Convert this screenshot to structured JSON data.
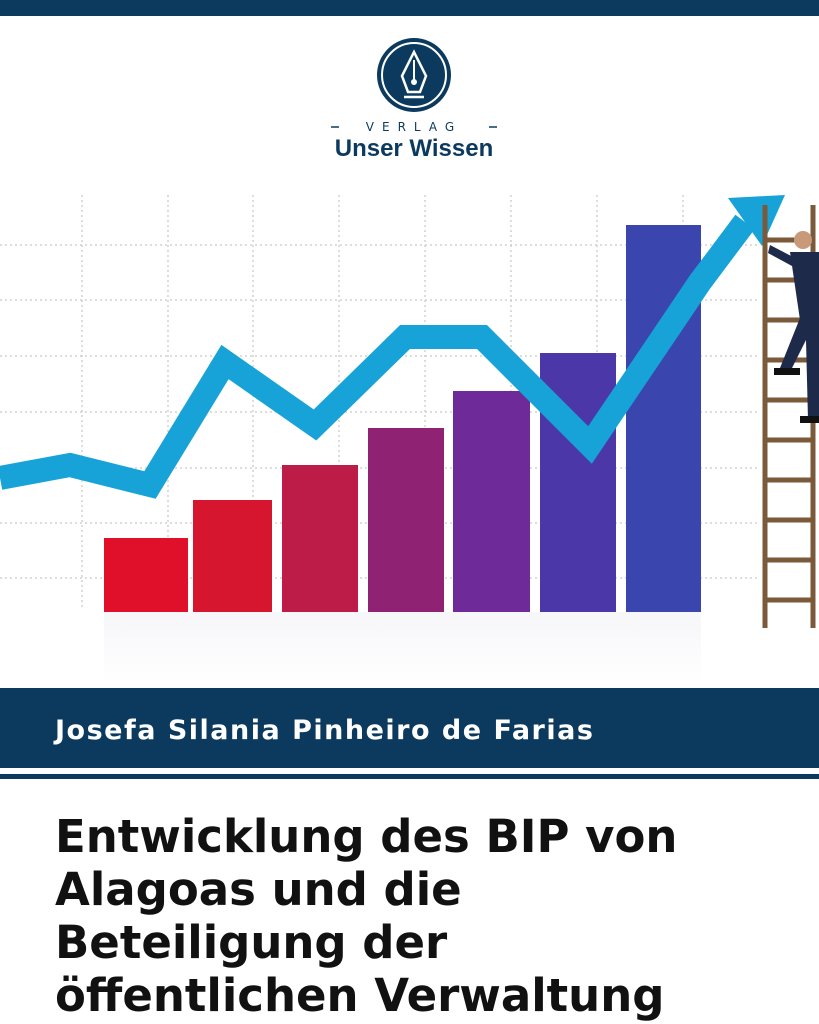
{
  "publisher": {
    "imprint": "VERLAG",
    "name": "Unser Wissen"
  },
  "author": "Josefa Silania Pinheiro de Farias",
  "title": {
    "lines": [
      "Entwicklung des BIP von",
      "Alagoas und die",
      "Beteiligung der",
      "öffentlichen Verwaltung"
    ]
  }
}
